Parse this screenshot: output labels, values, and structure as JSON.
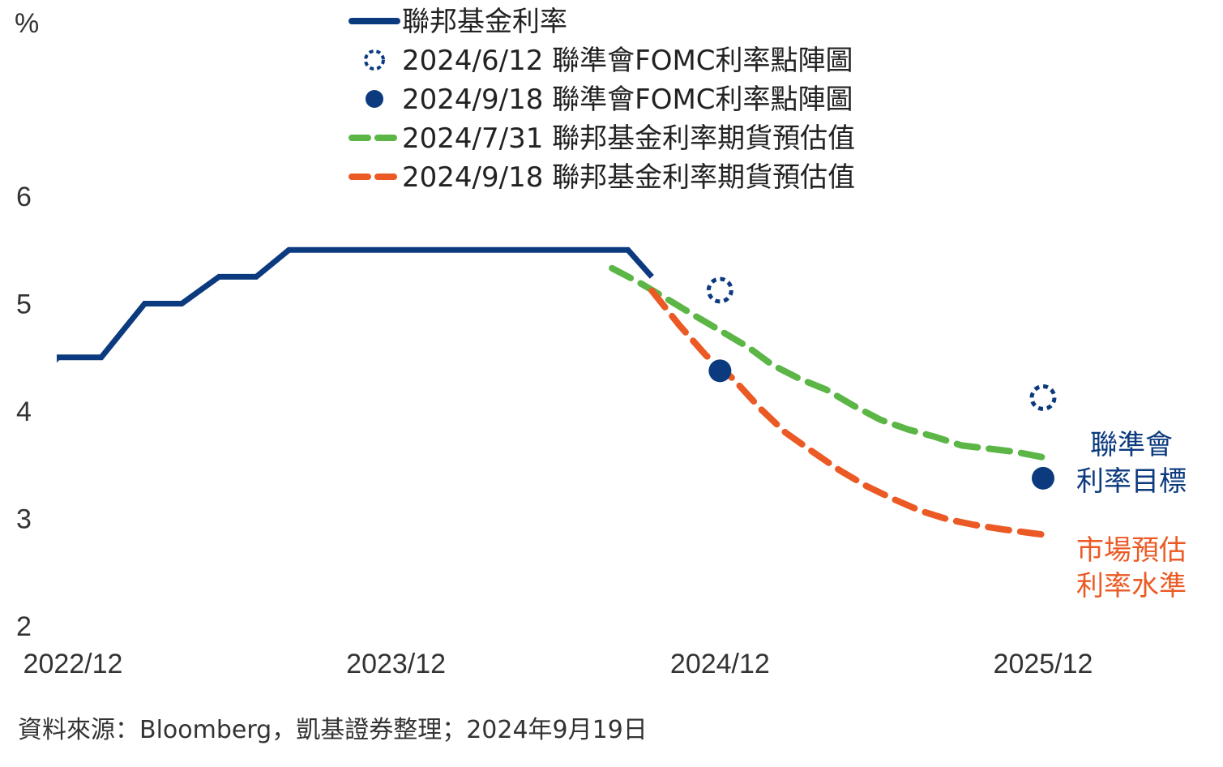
{
  "chart_data": {
    "type": "line",
    "ylabel": "%",
    "ylim": [
      2,
      6
    ],
    "yticks": [
      "6",
      "5",
      "4",
      "3",
      "2"
    ],
    "xticks": [
      "2022/12",
      "2023/12",
      "2024/12",
      "2025/12"
    ],
    "grid": false,
    "legend_position": "top-center",
    "series": [
      {
        "name": "聯邦基金利率",
        "kind": "step-line",
        "color": "#0b3a7e",
        "points": [
          [
            "2022-11-15",
            4.25
          ],
          [
            "2022-12-14",
            4.5
          ],
          [
            "2023-02-01",
            4.5
          ],
          [
            "2023-03-22",
            5.0
          ],
          [
            "2023-05-03",
            5.0
          ],
          [
            "2023-06-14",
            5.25
          ],
          [
            "2023-07-26",
            5.25
          ],
          [
            "2023-09-01",
            5.5
          ],
          [
            "2024-09-18",
            5.5
          ],
          [
            "2024-10-15",
            5.25
          ]
        ]
      },
      {
        "name": "2024/6/12 聯準會FOMC利率點陣圖",
        "kind": "dot-hollow",
        "color": "#0b3a7e",
        "points": [
          [
            "2024-12-31",
            5.125
          ],
          [
            "2025-12-31",
            4.125
          ]
        ]
      },
      {
        "name": "2024/9/18 聯準會FOMC利率點陣圖",
        "kind": "dot-filled",
        "color": "#0b3a7e",
        "points": [
          [
            "2024-12-31",
            4.375
          ],
          [
            "2025-12-31",
            3.375
          ]
        ]
      },
      {
        "name": "2024/7/31 聯邦基金利率期貨預估值",
        "kind": "dashed-line",
        "color": "#5bb646",
        "points": [
          [
            "2024-08-31",
            5.33
          ],
          [
            "2024-09-30",
            5.2
          ],
          [
            "2024-10-31",
            5.05
          ],
          [
            "2024-11-30",
            4.9
          ],
          [
            "2024-12-31",
            4.75
          ],
          [
            "2025-01-31",
            4.6
          ],
          [
            "2025-02-28",
            4.43
          ],
          [
            "2025-03-31",
            4.3
          ],
          [
            "2025-04-30",
            4.2
          ],
          [
            "2025-05-31",
            4.05
          ],
          [
            "2025-06-30",
            3.92
          ],
          [
            "2025-07-31",
            3.83
          ],
          [
            "2025-08-31",
            3.76
          ],
          [
            "2025-09-30",
            3.68
          ],
          [
            "2025-10-31",
            3.65
          ],
          [
            "2025-11-30",
            3.62
          ],
          [
            "2025-12-31",
            3.57
          ]
        ]
      },
      {
        "name": "2024/9/18 聯邦基金利率期貨預估值",
        "kind": "dashed-line",
        "color": "#eb5a24",
        "points": [
          [
            "2024-10-15",
            5.12
          ],
          [
            "2024-11-15",
            4.8
          ],
          [
            "2024-12-15",
            4.52
          ],
          [
            "2025-01-15",
            4.3
          ],
          [
            "2025-02-15",
            4.02
          ],
          [
            "2025-03-15",
            3.8
          ],
          [
            "2025-04-15",
            3.62
          ],
          [
            "2025-05-15",
            3.45
          ],
          [
            "2025-06-15",
            3.3
          ],
          [
            "2025-07-15",
            3.18
          ],
          [
            "2025-08-15",
            3.07
          ],
          [
            "2025-09-15",
            2.99
          ],
          [
            "2025-10-15",
            2.94
          ],
          [
            "2025-11-15",
            2.9
          ],
          [
            "2025-12-31",
            2.85
          ]
        ]
      }
    ],
    "annotations": [
      {
        "lines": [
          "聯準會",
          "利率目標"
        ],
        "color": "#0b3a7e"
      },
      {
        "lines": [
          "市場預估",
          "利率水準"
        ],
        "color": "#eb5a24"
      }
    ]
  },
  "source_note": "資料來源：Bloomberg，凱基證券整理；2024年9月19日"
}
